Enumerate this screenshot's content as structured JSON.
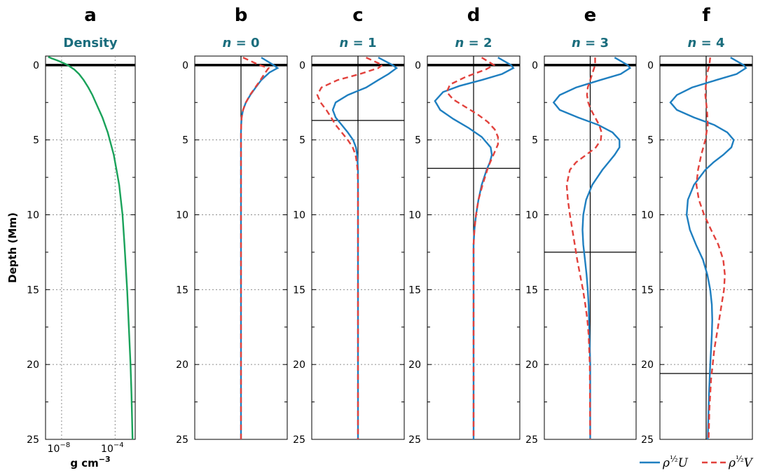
{
  "chart_data": [
    {
      "type": "line",
      "panel_letter": "a",
      "title": "Density",
      "ylabel": "Depth (Mm)",
      "xlabel": "g cm",
      "xlabel_sup": "−3",
      "x_scale": "log",
      "xlim_log10": [
        -9.2,
        -2.5
      ],
      "ylim": [
        25,
        -0.6
      ],
      "yticks": [
        0,
        5,
        10,
        15,
        20,
        25
      ],
      "xtick_labels": [
        {
          "value": -8,
          "base": "10",
          "exp": "−8"
        },
        {
          "value": -4,
          "base": "10",
          "exp": "−4"
        }
      ],
      "grid": true,
      "series": [
        {
          "key": "rho",
          "depth": [
            -0.55,
            -0.45,
            -0.3,
            -0.15,
            0,
            0.3,
            0.6,
            1,
            1.5,
            2,
            2.5,
            3,
            3.5,
            4,
            4.5,
            5,
            6,
            7,
            8,
            10,
            12,
            15,
            18,
            20,
            22,
            25
          ],
          "log10_density": [
            -9.0,
            -8.75,
            -8.3,
            -7.9,
            -7.55,
            -7.05,
            -6.7,
            -6.35,
            -6.0,
            -5.7,
            -5.45,
            -5.2,
            -4.95,
            -4.75,
            -4.55,
            -4.4,
            -4.1,
            -3.9,
            -3.7,
            -3.45,
            -3.3,
            -3.1,
            -2.95,
            -2.85,
            -2.78,
            -2.7
          ]
        }
      ]
    },
    {
      "type": "line",
      "panel_letter": "b",
      "title_prefix": "n",
      "title_suffix": " = 0",
      "node_depths": [],
      "series": [
        {
          "key": "U",
          "depth": [
            -0.5,
            0,
            0.2,
            0.5,
            1,
            1.5,
            2,
            2.5,
            3,
            3.5,
            4,
            4.5,
            6,
            10,
            25
          ],
          "value": [
            0.5,
            0.8,
            0.9,
            0.7,
            0.5,
            0.36,
            0.23,
            0.12,
            0.05,
            0.015,
            0.005,
            0,
            0,
            0,
            0
          ]
        },
        {
          "key": "V",
          "depth": [
            -0.5,
            0,
            0.2,
            0.5,
            1,
            1.5,
            2,
            2.5,
            3,
            3.5,
            4,
            4.5,
            6,
            10,
            25
          ],
          "value": [
            0.05,
            0.45,
            0.68,
            0.6,
            0.48,
            0.35,
            0.22,
            0.12,
            0.05,
            0.015,
            0.005,
            0,
            0,
            0,
            0
          ]
        }
      ]
    },
    {
      "type": "line",
      "panel_letter": "c",
      "title_prefix": "n",
      "title_suffix": " = 1",
      "node_depths": [
        3.7
      ],
      "series": [
        {
          "key": "U",
          "depth": [
            -0.5,
            0,
            0.2,
            0.6,
            1,
            1.5,
            2,
            2.5,
            3,
            3.5,
            4,
            4.5,
            5,
            5.5,
            6,
            6.5,
            7,
            8,
            10,
            25
          ],
          "value": [
            0.5,
            0.85,
            0.95,
            0.75,
            0.5,
            0.2,
            -0.25,
            -0.55,
            -0.62,
            -0.55,
            -0.4,
            -0.25,
            -0.12,
            -0.05,
            -0.02,
            -0.01,
            0,
            0,
            0,
            0
          ]
        },
        {
          "key": "V",
          "depth": [
            -0.5,
            0,
            0.2,
            0.6,
            1,
            1.5,
            2,
            2.5,
            3,
            3.5,
            4,
            4.5,
            5,
            5.5,
            6,
            6.5,
            7,
            8,
            10,
            25
          ],
          "value": [
            0.2,
            0.6,
            0.5,
            0.05,
            -0.5,
            -0.9,
            -1.0,
            -0.92,
            -0.78,
            -0.66,
            -0.55,
            -0.4,
            -0.25,
            -0.13,
            -0.06,
            -0.03,
            -0.01,
            0,
            0,
            0
          ]
        }
      ]
    },
    {
      "type": "line",
      "panel_letter": "d",
      "title_prefix": "n",
      "title_suffix": " = 2",
      "node_depths": [
        6.9
      ],
      "series": [
        {
          "key": "U",
          "depth": [
            -0.5,
            0,
            0.2,
            0.6,
            1,
            1.4,
            1.8,
            2.4,
            3,
            3.6,
            4.2,
            4.8,
            5.5,
            6,
            6.5,
            7,
            7.5,
            8,
            8.5,
            9,
            10,
            11,
            12,
            25
          ],
          "value": [
            0.6,
            0.92,
            0.98,
            0.7,
            0.2,
            -0.35,
            -0.75,
            -0.95,
            -0.82,
            -0.5,
            -0.12,
            0.2,
            0.42,
            0.45,
            0.4,
            0.32,
            0.26,
            0.2,
            0.16,
            0.12,
            0.06,
            0.02,
            0,
            0
          ]
        },
        {
          "key": "V",
          "depth": [
            -0.5,
            0,
            0.3,
            0.8,
            1.3,
            1.8,
            2.3,
            2.8,
            3.3,
            3.8,
            4.3,
            4.8,
            5.3,
            5.8,
            6.3,
            6.8,
            7.5,
            8,
            8.5,
            9,
            10,
            11,
            12,
            25
          ],
          "value": [
            0.2,
            0.5,
            0.3,
            -0.2,
            -0.58,
            -0.66,
            -0.5,
            -0.2,
            0.1,
            0.35,
            0.52,
            0.6,
            0.6,
            0.52,
            0.44,
            0.36,
            0.28,
            0.22,
            0.17,
            0.12,
            0.06,
            0.02,
            0,
            0
          ]
        }
      ]
    },
    {
      "type": "line",
      "panel_letter": "e",
      "title_prefix": "n",
      "title_suffix": " = 3",
      "node_depths": [
        12.5
      ],
      "series": [
        {
          "key": "U",
          "depth": [
            -0.5,
            0,
            0.2,
            0.6,
            1,
            1.5,
            2,
            2.5,
            3,
            3.5,
            4,
            4.5,
            5,
            5.5,
            6,
            6.5,
            7,
            8,
            9,
            10,
            11,
            12,
            13,
            14,
            15,
            16,
            18,
            20,
            25
          ],
          "value": [
            0.6,
            0.92,
            0.98,
            0.75,
            0.25,
            -0.35,
            -0.75,
            -0.9,
            -0.75,
            -0.3,
            0.2,
            0.55,
            0.72,
            0.72,
            0.6,
            0.45,
            0.3,
            0.05,
            -0.1,
            -0.17,
            -0.19,
            -0.17,
            -0.13,
            -0.09,
            -0.06,
            -0.04,
            -0.02,
            0,
            0
          ]
        },
        {
          "key": "V",
          "depth": [
            -0.5,
            0,
            0.5,
            1,
            1.5,
            2,
            2.5,
            3,
            3.5,
            4,
            4.5,
            5,
            5.5,
            6,
            6.5,
            7,
            8,
            9,
            10,
            11,
            12,
            13,
            14,
            15,
            16,
            17,
            18,
            20,
            25
          ],
          "value": [
            0.12,
            0.12,
            0.06,
            0,
            -0.06,
            -0.08,
            -0.05,
            0.02,
            0.12,
            0.22,
            0.28,
            0.26,
            0.14,
            -0.1,
            -0.35,
            -0.5,
            -0.58,
            -0.55,
            -0.5,
            -0.44,
            -0.38,
            -0.32,
            -0.25,
            -0.18,
            -0.12,
            -0.07,
            -0.04,
            -0.01,
            0
          ]
        }
      ]
    },
    {
      "type": "line",
      "panel_letter": "f",
      "title_prefix": "n",
      "title_suffix": " = 4",
      "node_depths": [
        20.6
      ],
      "series": [
        {
          "key": "U",
          "depth": [
            -0.5,
            0,
            0.2,
            0.6,
            1,
            1.5,
            2,
            2.5,
            3,
            3.5,
            4,
            4.5,
            5,
            5.5,
            6,
            6.5,
            7,
            8,
            9,
            10,
            11,
            12,
            13,
            14,
            15,
            16,
            17,
            18,
            19,
            20,
            22,
            24,
            25
          ],
          "value": [
            0.6,
            0.92,
            0.98,
            0.75,
            0.25,
            -0.35,
            -0.72,
            -0.88,
            -0.72,
            -0.3,
            0.2,
            0.52,
            0.68,
            0.62,
            0.42,
            0.18,
            -0.02,
            -0.3,
            -0.45,
            -0.48,
            -0.4,
            -0.25,
            -0.08,
            0.03,
            0.1,
            0.14,
            0.15,
            0.14,
            0.12,
            0.1,
            0.07,
            0.05,
            0.04
          ]
        },
        {
          "key": "V",
          "depth": [
            -0.5,
            0,
            0.5,
            1,
            2,
            3,
            4,
            5,
            6,
            7,
            8,
            9,
            10,
            11,
            12,
            13,
            14,
            15,
            16,
            17,
            18,
            19,
            20,
            21,
            22,
            23,
            24,
            25
          ],
          "value": [
            0.1,
            0.08,
            0.03,
            0,
            -0.02,
            0.02,
            0.04,
            -0.02,
            -0.12,
            -0.2,
            -0.24,
            -0.18,
            -0.05,
            0.12,
            0.3,
            0.42,
            0.46,
            0.44,
            0.38,
            0.32,
            0.26,
            0.2,
            0.16,
            0.12,
            0.1,
            0.08,
            0.07,
            0.06
          ]
        }
      ]
    }
  ],
  "legend": {
    "U_label": "U",
    "V_label": "V",
    "rho_symbol": "ρ",
    "half_exp": "½"
  }
}
